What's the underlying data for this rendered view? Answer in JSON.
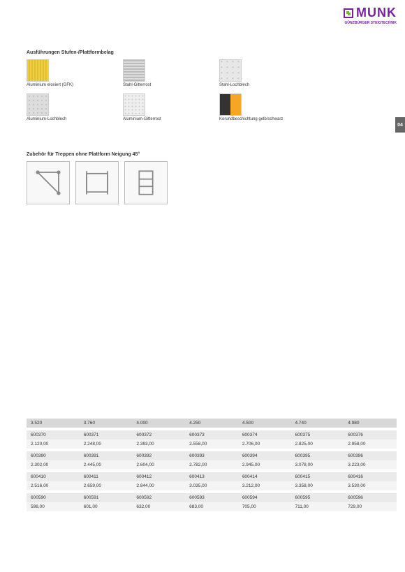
{
  "header": {
    "brand": "MUNK",
    "tagline": "GÜNZBURGER STEIGTECHNIK"
  },
  "pageNum": "04",
  "sec1": {
    "title": "Ausführungen Stufen-/Plattformbelag",
    "row1": [
      {
        "cls": "sw-yellow",
        "label": "Aluminium eloxiert (GFK)"
      },
      {
        "cls": "sw-grating",
        "label": "Stahl-Gitterrost"
      },
      {
        "cls": "sw-perf",
        "label": "Stahl-Lochblech"
      }
    ],
    "row2": [
      {
        "cls": "sw-perf2",
        "label": "Aluminium-Lochblech"
      },
      {
        "cls": "sw-mesh",
        "label": "Aluminium-Gitterrost"
      },
      {
        "cls": "sw-yb",
        "label": "Korundbeschichtung gelb/schwarz"
      }
    ]
  },
  "sec2": {
    "title": "Zubehör für Treppen ohne Plattform Neigung 45°",
    "opts": [
      "Auflagewinkel",
      "Einhängehaken",
      "Geländer"
    ]
  },
  "table_header": [
    "3.520",
    "3.760",
    "4.000",
    "4.250",
    "4.500",
    "4.740",
    "4.980"
  ],
  "groups": [
    {
      "codes": [
        "600370",
        "600371",
        "600372",
        "600373",
        "600374",
        "600375",
        "600376"
      ],
      "prices": [
        "2.120,00",
        "2.248,00",
        "2.393,00",
        "2.558,00",
        "2.706,00",
        "2.825,00",
        "2.958,00"
      ]
    },
    {
      "codes": [
        "600390",
        "600391",
        "600392",
        "600393",
        "600394",
        "600395",
        "600396"
      ],
      "prices": [
        "2.302,00",
        "2.445,00",
        "2.604,00",
        "2.782,00",
        "2.945,00",
        "3.078,00",
        "3.223,00"
      ]
    },
    {
      "codes": [
        "600410",
        "600411",
        "600412",
        "600413",
        "600414",
        "600415",
        "600416"
      ],
      "prices": [
        "2.516,00",
        "2.659,00",
        "2.844,00",
        "3.035,00",
        "3.212,00",
        "3.358,00",
        "3.530,00"
      ]
    },
    {
      "codes": [
        "600590",
        "600591",
        "600592",
        "600593",
        "600594",
        "600595",
        "600596"
      ],
      "prices": [
        "598,00",
        "601,00",
        "632,00",
        "683,00",
        "705,00",
        "711,00",
        "729,00"
      ]
    }
  ]
}
